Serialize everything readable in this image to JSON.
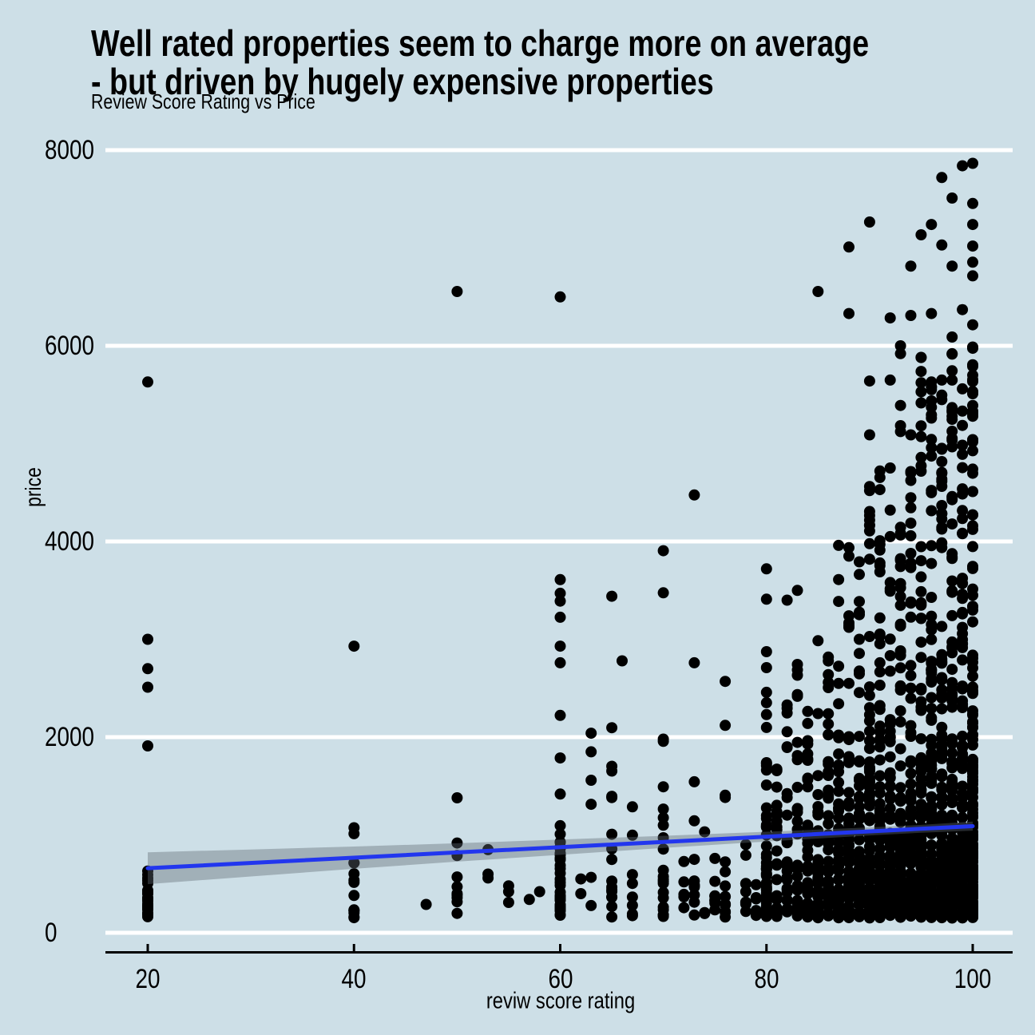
{
  "chart_data": {
    "type": "scatter",
    "title_line1": "Well rated properties seem to charge more on average",
    "title_line2": " - but driven by hugely expensive properties",
    "subtitle": "Review Score Rating vs Price",
    "xlabel": "reviw score rating",
    "ylabel": "price",
    "xticks": [
      20,
      40,
      60,
      80,
      100
    ],
    "yticks": [
      0,
      2000,
      4000,
      6000,
      8000
    ],
    "xlim": [
      15.9,
      103.9
    ],
    "ylim": [
      0,
      8000
    ],
    "grid": "on",
    "legend": "none",
    "colors": {
      "background": "#cddfe7",
      "gridline": "#ffffff",
      "point": "#000000",
      "trend_line": "#2236ee",
      "confidence_band": "rgba(96,106,116,0.40)",
      "axis": "#000000",
      "text": "#000000"
    },
    "point_min_price": 150,
    "columns": [
      {
        "x": 20,
        "n": 26,
        "scale": 240,
        "max": 1350,
        "mix": 0.12
      },
      {
        "x": 40,
        "n": 14,
        "scale": 380,
        "max": 2000,
        "mix": 0.15
      },
      {
        "x": 50,
        "n": 9,
        "scale": 280,
        "max": 1400,
        "mix": 0.1
      },
      {
        "x": 60,
        "n": 34,
        "scale": 550,
        "max": 2500,
        "mix": 0.22
      },
      {
        "x": 63,
        "n": 4,
        "scale": 450,
        "max": 2050,
        "mix": 0.3
      },
      {
        "x": 65,
        "n": 16,
        "scale": 450,
        "max": 2100,
        "mix": 0.2
      },
      {
        "x": 67,
        "n": 8,
        "scale": 400,
        "max": 2100,
        "mix": 0.25
      },
      {
        "x": 70,
        "n": 20,
        "scale": 480,
        "max": 2050,
        "mix": 0.2
      },
      {
        "x": 72,
        "n": 5,
        "scale": 350,
        "max": 1200,
        "mix": 0.2
      },
      {
        "x": 73,
        "n": 10,
        "scale": 420,
        "max": 1650,
        "mix": 0.2
      },
      {
        "x": 74,
        "n": 4,
        "scale": 350,
        "max": 1200,
        "mix": 0.2
      },
      {
        "x": 75,
        "n": 8,
        "scale": 380,
        "max": 1300,
        "mix": 0.2
      },
      {
        "x": 76,
        "n": 11,
        "scale": 420,
        "max": 1500,
        "mix": 0.2
      },
      {
        "x": 78,
        "n": 9,
        "scale": 420,
        "max": 1700,
        "mix": 0.2
      },
      {
        "x": 79,
        "n": 6,
        "scale": 300,
        "max": 900,
        "mix": 0.2
      },
      {
        "x": 80,
        "n": 46,
        "scale": 600,
        "max": 3100,
        "mix": 0.25
      },
      {
        "x": 81,
        "n": 22,
        "scale": 480,
        "max": 2000,
        "mix": 0.25
      },
      {
        "x": 82,
        "n": 27,
        "scale": 500,
        "max": 2600,
        "mix": 0.25
      },
      {
        "x": 83,
        "n": 34,
        "scale": 520,
        "max": 2800,
        "mix": 0.25
      },
      {
        "x": 84,
        "n": 34,
        "scale": 520,
        "max": 2400,
        "mix": 0.25
      },
      {
        "x": 85,
        "n": 40,
        "scale": 550,
        "max": 3000,
        "mix": 0.25
      },
      {
        "x": 86,
        "n": 46,
        "scale": 560,
        "max": 3100,
        "mix": 0.25
      },
      {
        "x": 87,
        "n": 52,
        "scale": 580,
        "max": 3950,
        "mix": 0.27
      },
      {
        "x": 88,
        "n": 60,
        "scale": 580,
        "max": 4000,
        "mix": 0.28
      },
      {
        "x": 89,
        "n": 55,
        "scale": 580,
        "max": 4000,
        "mix": 0.28
      },
      {
        "x": 90,
        "n": 75,
        "scale": 600,
        "max": 4600,
        "mix": 0.3
      },
      {
        "x": 91,
        "n": 70,
        "scale": 600,
        "max": 4700,
        "mix": 0.3
      },
      {
        "x": 92,
        "n": 80,
        "scale": 600,
        "max": 4800,
        "mix": 0.3
      },
      {
        "x": 93,
        "n": 90,
        "scale": 620,
        "max": 5400,
        "mix": 0.32
      },
      {
        "x": 94,
        "n": 85,
        "scale": 620,
        "max": 5100,
        "mix": 0.32
      },
      {
        "x": 95,
        "n": 100,
        "scale": 630,
        "max": 5900,
        "mix": 0.33
      },
      {
        "x": 96,
        "n": 110,
        "scale": 630,
        "max": 5700,
        "mix": 0.33
      },
      {
        "x": 97,
        "n": 115,
        "scale": 640,
        "max": 5700,
        "mix": 0.34
      },
      {
        "x": 98,
        "n": 125,
        "scale": 640,
        "max": 6100,
        "mix": 0.34
      },
      {
        "x": 99,
        "n": 120,
        "scale": 640,
        "max": 5800,
        "mix": 0.34
      },
      {
        "x": 100,
        "n": 170,
        "scale": 650,
        "max": 6000,
        "mix": 0.35
      }
    ],
    "outliers": [
      [
        20,
        5630
      ],
      [
        20,
        3000
      ],
      [
        20,
        2700
      ],
      [
        20,
        2510
      ],
      [
        20,
        1910
      ],
      [
        40,
        2930
      ],
      [
        47,
        290
      ],
      [
        50,
        6555
      ],
      [
        50,
        1380
      ],
      [
        53,
        850
      ],
      [
        53,
        600
      ],
      [
        53,
        560
      ],
      [
        55,
        480
      ],
      [
        55,
        420
      ],
      [
        55,
        310
      ],
      [
        57,
        340
      ],
      [
        58,
        420
      ],
      [
        60,
        6500
      ],
      [
        60,
        3610
      ],
      [
        60,
        3470
      ],
      [
        60,
        3390
      ],
      [
        60,
        3225
      ],
      [
        60,
        2930
      ],
      [
        60,
        2760
      ],
      [
        62,
        550
      ],
      [
        62,
        400
      ],
      [
        63,
        2040
      ],
      [
        63,
        1850
      ],
      [
        65,
        3440
      ],
      [
        66,
        2780
      ],
      [
        70,
        3905
      ],
      [
        70,
        3475
      ],
      [
        73,
        4475
      ],
      [
        73,
        2760
      ],
      [
        76,
        2570
      ],
      [
        76,
        2120
      ],
      [
        80,
        3720
      ],
      [
        80,
        3410
      ],
      [
        82,
        3400
      ],
      [
        83,
        3500
      ],
      [
        85,
        6555
      ],
      [
        87,
        3960
      ],
      [
        88,
        7010
      ],
      [
        88,
        6330
      ],
      [
        90,
        7265
      ],
      [
        90,
        5640
      ],
      [
        90,
        5090
      ],
      [
        91,
        4720
      ],
      [
        91,
        4530
      ],
      [
        92,
        6285
      ],
      [
        92,
        5650
      ],
      [
        92,
        4050
      ],
      [
        93,
        6000
      ],
      [
        93,
        5920
      ],
      [
        93,
        5390
      ],
      [
        94,
        6815
      ],
      [
        94,
        6310
      ],
      [
        94,
        5090
      ],
      [
        95,
        7135
      ],
      [
        95,
        5880
      ],
      [
        95,
        5530
      ],
      [
        96,
        7240
      ],
      [
        96,
        6330
      ],
      [
        96,
        5630
      ],
      [
        97,
        7720
      ],
      [
        97,
        7030
      ],
      [
        97,
        5650
      ],
      [
        97,
        5450
      ],
      [
        98,
        7510
      ],
      [
        98,
        6815
      ],
      [
        98,
        6090
      ],
      [
        98,
        5650
      ],
      [
        99,
        7840
      ],
      [
        99,
        6370
      ],
      [
        99,
        5560
      ],
      [
        100,
        7865
      ],
      [
        100,
        7455
      ],
      [
        100,
        7240
      ],
      [
        100,
        7020
      ],
      [
        100,
        6855
      ],
      [
        100,
        6715
      ],
      [
        100,
        6215
      ],
      [
        100,
        5985
      ],
      [
        100,
        5790
      ],
      [
        100,
        5700
      ],
      [
        100,
        5510
      ],
      [
        100,
        5390
      ]
    ],
    "trend": {
      "model": "linear",
      "x_range": [
        20,
        100
      ],
      "y_at_x_range": [
        660,
        1090
      ]
    },
    "band_halfwidth_by_x": [
      [
        20,
        163
      ],
      [
        30,
        138
      ],
      [
        40,
        114
      ],
      [
        50,
        94
      ],
      [
        60,
        78
      ],
      [
        70,
        62
      ],
      [
        80,
        50
      ],
      [
        90,
        41
      ],
      [
        95,
        40
      ],
      [
        100,
        46
      ]
    ]
  }
}
